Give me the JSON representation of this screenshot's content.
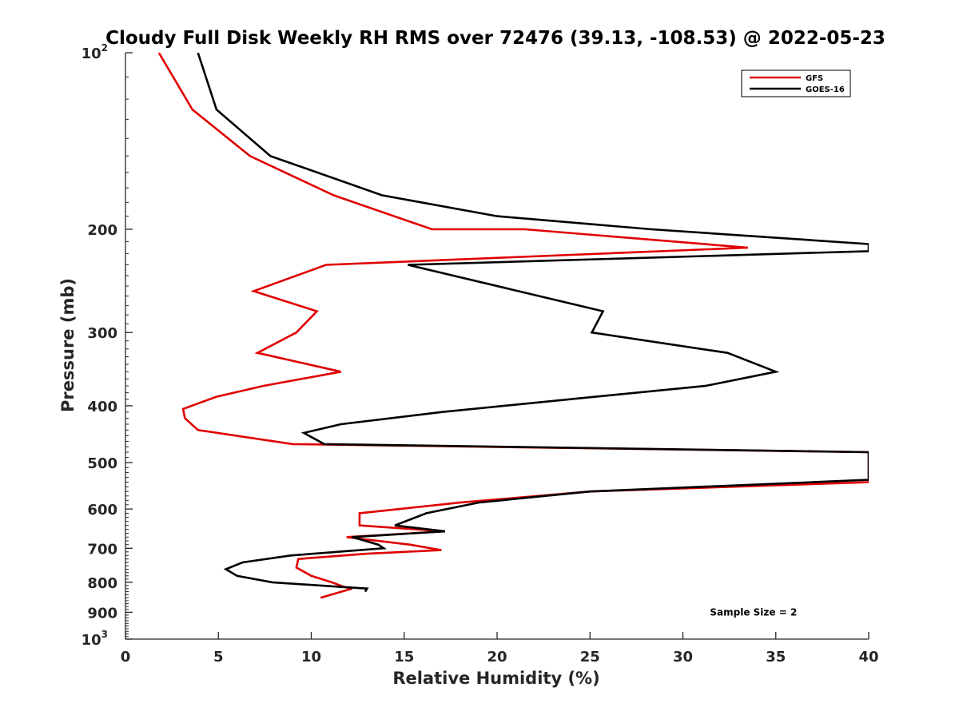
{
  "chart_data": {
    "type": "line",
    "title": "Cloudy Full Disk Weekly RH RMS over 72476 (39.13, -108.53) @ 2022-05-23",
    "xlabel": "Relative Humidity (%)",
    "ylabel": "Pressure (mb)",
    "xlim": [
      0,
      40
    ],
    "ylim": [
      100,
      1000
    ],
    "yscale": "log",
    "y_reversed": true,
    "xticks": [
      0,
      5,
      10,
      15,
      20,
      25,
      30,
      35,
      40
    ],
    "yticks": [
      {
        "value": 100,
        "label": "10",
        "exp": "2"
      },
      {
        "value": 200,
        "label": "200"
      },
      {
        "value": 300,
        "label": "300"
      },
      {
        "value": 400,
        "label": "400"
      },
      {
        "value": 500,
        "label": "500"
      },
      {
        "value": 600,
        "label": "600"
      },
      {
        "value": 700,
        "label": "700"
      },
      {
        "value": 800,
        "label": "800"
      },
      {
        "value": 900,
        "label": "900"
      },
      {
        "value": 1000,
        "label": "10",
        "exp": "3"
      }
    ],
    "grid": false,
    "legend": "top-right",
    "series": [
      {
        "name": "GFS",
        "color": "#e00000",
        "points": [
          [
            1.8,
            100
          ],
          [
            3.6,
            125
          ],
          [
            6.7,
            150
          ],
          [
            11.2,
            175
          ],
          [
            16.5,
            200
          ],
          [
            21.5,
            200
          ],
          [
            33.5,
            215
          ],
          [
            10.8,
            230
          ],
          [
            6.9,
            255
          ],
          [
            10.3,
            276
          ],
          [
            9.2,
            300
          ],
          [
            7.1,
            325
          ],
          [
            11.6,
            350
          ],
          [
            7.4,
            370
          ],
          [
            4.9,
            386
          ],
          [
            3.1,
            405
          ],
          [
            3.2,
            420
          ],
          [
            3.9,
            440
          ],
          [
            9.0,
            465
          ],
          [
            40,
            480
          ],
          [
            40,
            540
          ],
          [
            25,
            560
          ],
          [
            18,
            585
          ],
          [
            12.6,
            610
          ],
          [
            12.6,
            640
          ],
          [
            17.2,
            655
          ],
          [
            11.9,
            670
          ],
          [
            15.3,
            690
          ],
          [
            17.0,
            705
          ],
          [
            13.0,
            715
          ],
          [
            9.3,
            730
          ],
          [
            9.2,
            755
          ],
          [
            10.0,
            780
          ],
          [
            11.1,
            800
          ],
          [
            11.8,
            815
          ],
          [
            12.2,
            820
          ],
          [
            10.5,
            850
          ]
        ]
      },
      {
        "name": "GOES-16",
        "color": "#000000",
        "points": [
          [
            3.9,
            100
          ],
          [
            4.9,
            125
          ],
          [
            7.8,
            150
          ],
          [
            13.8,
            175
          ],
          [
            20.0,
            190
          ],
          [
            28.3,
            200
          ],
          [
            40,
            212
          ],
          [
            40,
            218
          ],
          [
            15.2,
            230
          ],
          [
            25.7,
            276
          ],
          [
            25.1,
            300
          ],
          [
            32.4,
            325
          ],
          [
            35.0,
            350
          ],
          [
            31.2,
            370
          ],
          [
            25.3,
            386
          ],
          [
            17.0,
            410
          ],
          [
            11.6,
            430
          ],
          [
            9.6,
            445
          ],
          [
            10.7,
            465
          ],
          [
            40,
            480
          ],
          [
            40,
            535
          ],
          [
            25,
            560
          ],
          [
            19,
            585
          ],
          [
            16.2,
            610
          ],
          [
            14.5,
            640
          ],
          [
            17.2,
            655
          ],
          [
            12.2,
            670
          ],
          [
            13.6,
            690
          ],
          [
            13.9,
            700
          ],
          [
            8.9,
            720
          ],
          [
            6.3,
            740
          ],
          [
            5.4,
            760
          ],
          [
            6.0,
            780
          ],
          [
            7.9,
            800
          ],
          [
            11.7,
            815
          ],
          [
            13.0,
            820
          ],
          [
            12.9,
            830
          ]
        ]
      }
    ],
    "annotations": [
      {
        "text": "Sample Size = 2",
        "x": 33.8,
        "y": 900
      }
    ]
  }
}
